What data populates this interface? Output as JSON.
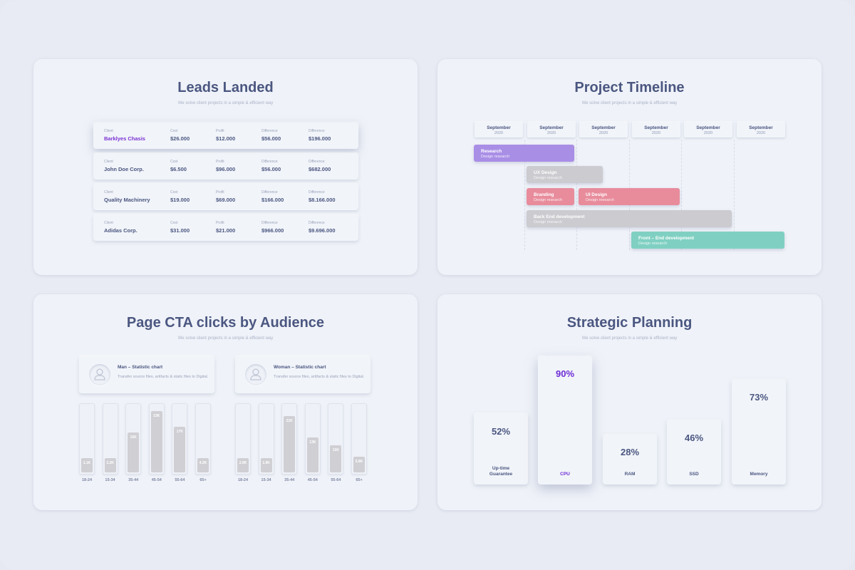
{
  "colors": {
    "accent": "#7b32d4",
    "research": "#a98ee6",
    "ux": "#cbcbd0",
    "branding": "#e89aa6",
    "backend": "#cbcbd0",
    "frontend": "#7fd0c2"
  },
  "leads": {
    "title": "Leads Landed",
    "subtitle": "We solve client projects in a simple & efficient way",
    "rows": [
      {
        "cells": [
          {
            "label": "Client",
            "value": "Barklyes Chasis"
          },
          {
            "label": "Cost",
            "value": "$26.000"
          },
          {
            "label": "Profit",
            "value": "$12.000"
          },
          {
            "label": "Difference",
            "value": "$56.000"
          },
          {
            "label": "Difference",
            "value": "$196.000"
          }
        ]
      },
      {
        "cells": [
          {
            "label": "Client",
            "value": "John Doe Corp."
          },
          {
            "label": "Cost",
            "value": "$6.500"
          },
          {
            "label": "Profit",
            "value": "$96.000"
          },
          {
            "label": "Difference",
            "value": "$56.000"
          },
          {
            "label": "Difference",
            "value": "$682.000"
          }
        ]
      },
      {
        "cells": [
          {
            "label": "Client",
            "value": "Quality Machinery"
          },
          {
            "label": "Cost",
            "value": "$19.000"
          },
          {
            "label": "Profit",
            "value": "$69.000"
          },
          {
            "label": "Difference",
            "value": "$166.000"
          },
          {
            "label": "Difference",
            "value": "$8.166.000"
          }
        ]
      },
      {
        "cells": [
          {
            "label": "Client",
            "value": "Adidas Corp."
          },
          {
            "label": "Cost",
            "value": "$31.000"
          },
          {
            "label": "Profit",
            "value": "$21.000"
          },
          {
            "label": "Difference",
            "value": "$966.000"
          },
          {
            "label": "Difference",
            "value": "$9.696.000"
          }
        ]
      }
    ]
  },
  "timeline": {
    "title": "Project Timeline",
    "subtitle": "We solve client projects in a simple & efficient way",
    "columns": [
      {
        "month": "September",
        "year": "2020"
      },
      {
        "month": "September",
        "year": "2020"
      },
      {
        "month": "September",
        "year": "2020"
      },
      {
        "month": "September",
        "year": "2020"
      },
      {
        "month": "September",
        "year": "2020"
      },
      {
        "month": "September",
        "year": "2020"
      }
    ],
    "tasks": [
      {
        "title": "Research",
        "sub": "Design research"
      },
      {
        "title": "UX Design",
        "sub": "Design research"
      },
      {
        "title": "Branding",
        "sub": "Design research"
      },
      {
        "title": "UI Design",
        "sub": "Design research"
      },
      {
        "title": "Back End development",
        "sub": "Design research"
      },
      {
        "title": "Front – End development",
        "sub": "Design research"
      }
    ]
  },
  "cta": {
    "title": "Page CTA clicks by Audience",
    "subtitle": "We solve client projects in a simple & efficient way",
    "groups": [
      {
        "name": "Man – Statistic chart",
        "desc": "Transfer source files, artifacts & static files to Digital.",
        "bars": [
          {
            "age": "18-24",
            "label": "1.1K",
            "value": 1.1
          },
          {
            "age": "15-34",
            "label": "2.2K",
            "value": 2.2
          },
          {
            "age": "35-44",
            "label": "15K",
            "value": 15
          },
          {
            "age": "45-54",
            "label": "23K",
            "value": 23
          },
          {
            "age": "55-64",
            "label": "17K",
            "value": 17
          },
          {
            "age": "65+",
            "label": "4.2K",
            "value": 4.2
          }
        ]
      },
      {
        "name": "Woman – Statistic chart",
        "desc": "Transfer source files, artifacts & static files to Digital.",
        "bars": [
          {
            "age": "18-24",
            "label": "2.9K",
            "value": 2.9
          },
          {
            "age": "15-34",
            "label": "1.9K",
            "value": 1.9
          },
          {
            "age": "35-44",
            "label": "21K",
            "value": 21
          },
          {
            "age": "45-54",
            "label": "13K",
            "value": 13
          },
          {
            "age": "55-64",
            "label": "10K",
            "value": 10
          },
          {
            "age": "65+",
            "label": "5.8K",
            "value": 5.8
          }
        ]
      }
    ]
  },
  "strategic": {
    "title": "Strategic Planning",
    "subtitle": "We solve client projects in a simple & efficient way",
    "items": [
      {
        "value": "52%",
        "label": "Up-time Guarantee"
      },
      {
        "value": "90%",
        "label": "CPU"
      },
      {
        "value": "28%",
        "label": "RAM"
      },
      {
        "value": "46%",
        "label": "SSD"
      },
      {
        "value": "73%",
        "label": "Memory"
      }
    ]
  }
}
